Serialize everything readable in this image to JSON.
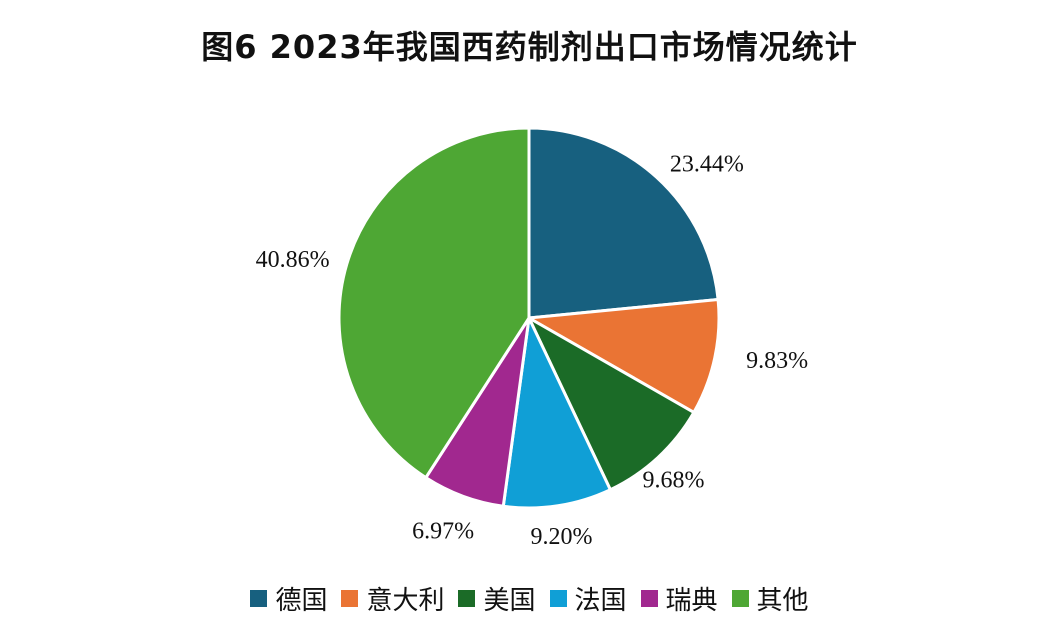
{
  "chart_data": {
    "type": "pie",
    "title": "图6 2023年我国西药制剂出口市场情况统计",
    "categories": [
      "德国",
      "意大利",
      "美国",
      "法国",
      "瑞典",
      "其他"
    ],
    "values": [
      23.44,
      9.83,
      9.68,
      9.2,
      6.97,
      40.86
    ],
    "labels": [
      "23.44%",
      "9.83%",
      "9.68%",
      "9.20%",
      "6.97%",
      "40.86%"
    ],
    "colors": [
      "#17607f",
      "#ea7434",
      "#1b6b27",
      "#109fd6",
      "#a1288f",
      "#4ea734"
    ],
    "legend": "bottom"
  }
}
